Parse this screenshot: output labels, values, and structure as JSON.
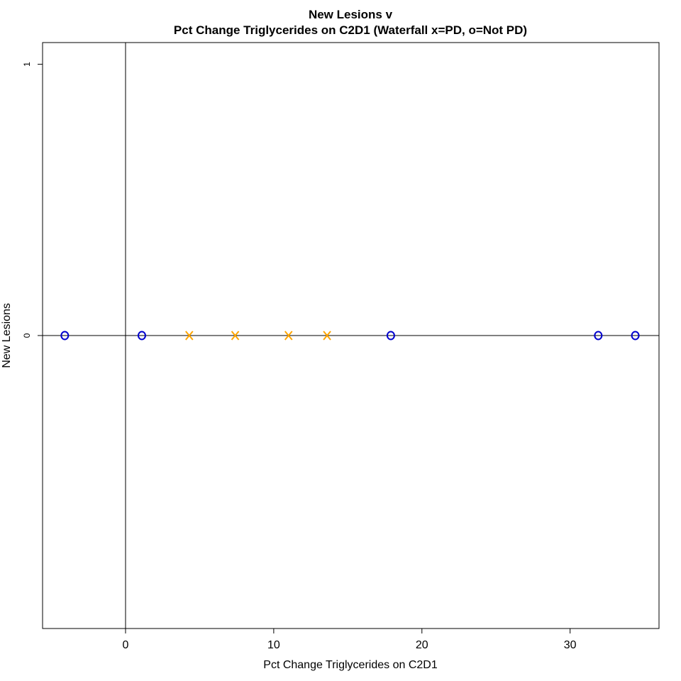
{
  "chart_data": {
    "type": "scatter",
    "title": "New Lesions v",
    "subtitle": "Pct Change Triglycerides on C2D1 (Waterfall x=PD, o=Not PD)",
    "xlabel": "Pct Change Triglycerides on C2D1",
    "ylabel": "New Lesions",
    "xlim": [
      -5.6,
      36.0
    ],
    "ylim": [
      -1.08,
      1.08
    ],
    "x_ticks": [
      0,
      10,
      20,
      30
    ],
    "x_tick_labels": [
      "0",
      "10",
      "20",
      "30"
    ],
    "y_ticks": [
      0,
      1
    ],
    "y_tick_labels": [
      "0",
      "1"
    ],
    "reference_lines": {
      "x": 0,
      "y": 0
    },
    "grid": false,
    "series": [
      {
        "marker": "o",
        "color": "#0000CD",
        "points": [
          {
            "x": -4.1,
            "y": 0
          },
          {
            "x": 1.1,
            "y": 0
          },
          {
            "x": 17.9,
            "y": 0
          },
          {
            "x": 31.9,
            "y": 0
          },
          {
            "x": 34.4,
            "y": 0
          }
        ]
      },
      {
        "marker": "x",
        "color": "#FFA500",
        "points": [
          {
            "x": 4.3,
            "y": 0
          },
          {
            "x": 7.4,
            "y": 0
          },
          {
            "x": 11.0,
            "y": 0
          },
          {
            "x": 13.6,
            "y": 0
          }
        ]
      }
    ]
  }
}
